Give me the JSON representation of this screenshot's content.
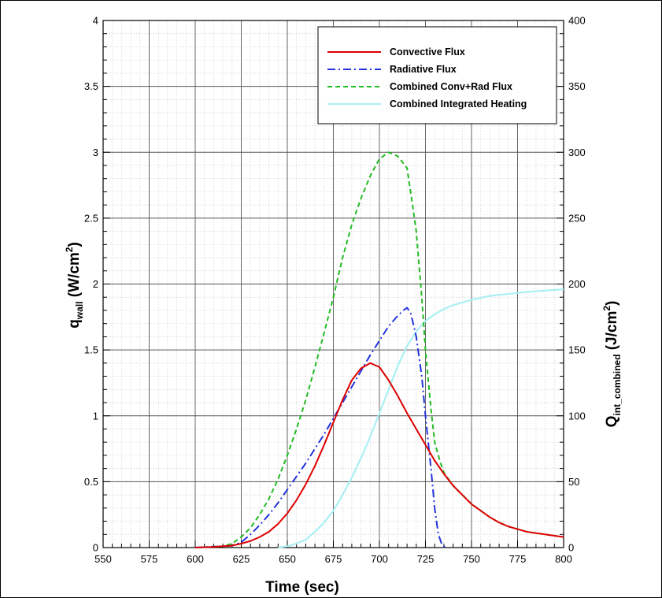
{
  "chart_data": {
    "type": "line",
    "title": "",
    "xlabel": "Time (sec)",
    "ylabel_left": {
      "main": "q",
      "sub": "wall",
      "units_pre": " (W/cm",
      "units_sup": "2",
      "units_post": ")"
    },
    "ylabel_right": {
      "main": "Q",
      "sub": "int_combined",
      "units_pre": " (J/cm",
      "units_sup": "2",
      "units_post": ")"
    },
    "xlim": [
      550,
      800
    ],
    "ylim_left": [
      0,
      4
    ],
    "ylim_right": [
      0,
      400
    ],
    "x_ticks": [
      "550",
      "575",
      "600",
      "625",
      "650",
      "675",
      "700",
      "725",
      "750",
      "775",
      "800"
    ],
    "y_left_ticks": [
      "0",
      "0.5",
      "1",
      "1.5",
      "2",
      "2.5",
      "3",
      "3.5",
      "4"
    ],
    "y_right_ticks": [
      "0",
      "50",
      "100",
      "150",
      "200",
      "250",
      "300",
      "350",
      "400"
    ],
    "grid": true,
    "legend_position": "top-right",
    "series": [
      {
        "name": "Convective Flux",
        "color": "#dd0000",
        "style": "solid",
        "axis": "left",
        "points": [
          [
            600,
            0
          ],
          [
            610,
            0.005
          ],
          [
            620,
            0.015
          ],
          [
            625,
            0.03
          ],
          [
            630,
            0.05
          ],
          [
            635,
            0.08
          ],
          [
            640,
            0.12
          ],
          [
            645,
            0.18
          ],
          [
            650,
            0.26
          ],
          [
            655,
            0.36
          ],
          [
            660,
            0.48
          ],
          [
            665,
            0.62
          ],
          [
            670,
            0.78
          ],
          [
            675,
            0.95
          ],
          [
            680,
            1.12
          ],
          [
            685,
            1.27
          ],
          [
            690,
            1.36
          ],
          [
            695,
            1.4
          ],
          [
            700,
            1.37
          ],
          [
            705,
            1.27
          ],
          [
            710,
            1.15
          ],
          [
            715,
            1.02
          ],
          [
            720,
            0.9
          ],
          [
            725,
            0.78
          ],
          [
            730,
            0.66
          ],
          [
            735,
            0.56
          ],
          [
            740,
            0.47
          ],
          [
            745,
            0.4
          ],
          [
            750,
            0.33
          ],
          [
            755,
            0.28
          ],
          [
            760,
            0.23
          ],
          [
            765,
            0.19
          ],
          [
            770,
            0.16
          ],
          [
            775,
            0.14
          ],
          [
            780,
            0.12
          ],
          [
            785,
            0.11
          ],
          [
            790,
            0.1
          ],
          [
            795,
            0.09
          ],
          [
            800,
            0.08
          ]
        ]
      },
      {
        "name": "Radiative Flux",
        "color": "#2233dd",
        "style": "dashdot",
        "axis": "left",
        "points": [
          [
            600,
            0
          ],
          [
            615,
            0.01
          ],
          [
            620,
            0.015
          ],
          [
            625,
            0.04
          ],
          [
            630,
            0.1
          ],
          [
            635,
            0.17
          ],
          [
            640,
            0.25
          ],
          [
            645,
            0.34
          ],
          [
            650,
            0.44
          ],
          [
            655,
            0.54
          ],
          [
            660,
            0.64
          ],
          [
            665,
            0.75
          ],
          [
            670,
            0.86
          ],
          [
            675,
            0.98
          ],
          [
            680,
            1.1
          ],
          [
            685,
            1.22
          ],
          [
            690,
            1.34
          ],
          [
            695,
            1.46
          ],
          [
            700,
            1.57
          ],
          [
            705,
            1.68
          ],
          [
            710,
            1.76
          ],
          [
            713,
            1.8
          ],
          [
            715,
            1.82
          ],
          [
            717,
            1.78
          ],
          [
            720,
            1.6
          ],
          [
            723,
            1.3
          ],
          [
            725,
            1.0
          ],
          [
            728,
            0.6
          ],
          [
            730,
            0.3
          ],
          [
            732,
            0.1
          ],
          [
            734,
            0.02
          ],
          [
            736,
            0
          ]
        ]
      },
      {
        "name": "Combined Conv+Rad Flux",
        "color": "#22bb22",
        "style": "dashed",
        "axis": "left",
        "points": [
          [
            600,
            0
          ],
          [
            615,
            0.01
          ],
          [
            620,
            0.03
          ],
          [
            625,
            0.08
          ],
          [
            630,
            0.15
          ],
          [
            635,
            0.25
          ],
          [
            640,
            0.37
          ],
          [
            645,
            0.52
          ],
          [
            650,
            0.7
          ],
          [
            655,
            0.9
          ],
          [
            660,
            1.12
          ],
          [
            665,
            1.37
          ],
          [
            670,
            1.63
          ],
          [
            675,
            1.9
          ],
          [
            680,
            2.2
          ],
          [
            685,
            2.45
          ],
          [
            690,
            2.65
          ],
          [
            695,
            2.82
          ],
          [
            700,
            2.95
          ],
          [
            705,
            3.0
          ],
          [
            710,
            2.97
          ],
          [
            715,
            2.88
          ],
          [
            718,
            2.6
          ],
          [
            720,
            2.4
          ],
          [
            723,
            1.9
          ],
          [
            725,
            1.5
          ],
          [
            728,
            1.05
          ],
          [
            730,
            0.8
          ],
          [
            733,
            0.65
          ],
          [
            735,
            0.57
          ],
          [
            740,
            0.47
          ],
          [
            745,
            0.4
          ],
          [
            750,
            0.33
          ],
          [
            755,
            0.28
          ],
          [
            760,
            0.23
          ],
          [
            765,
            0.19
          ],
          [
            770,
            0.16
          ],
          [
            775,
            0.14
          ],
          [
            780,
            0.12
          ],
          [
            785,
            0.11
          ],
          [
            790,
            0.1
          ],
          [
            795,
            0.09
          ],
          [
            800,
            0.08
          ]
        ]
      },
      {
        "name": "Combined Integrated Heating",
        "color": "#aaf0f2",
        "style": "solid",
        "axis": "right",
        "points": [
          [
            645,
            0
          ],
          [
            650,
            1
          ],
          [
            655,
            3
          ],
          [
            660,
            6
          ],
          [
            665,
            12
          ],
          [
            670,
            19
          ],
          [
            675,
            28
          ],
          [
            680,
            40
          ],
          [
            685,
            53
          ],
          [
            690,
            68
          ],
          [
            695,
            84
          ],
          [
            700,
            102
          ],
          [
            705,
            120
          ],
          [
            710,
            138
          ],
          [
            715,
            153
          ],
          [
            720,
            164
          ],
          [
            725,
            172
          ],
          [
            730,
            177
          ],
          [
            735,
            181
          ],
          [
            740,
            184
          ],
          [
            745,
            186
          ],
          [
            750,
            188
          ],
          [
            760,
            191
          ],
          [
            770,
            192.5
          ],
          [
            780,
            194
          ],
          [
            790,
            195
          ],
          [
            800,
            196
          ]
        ]
      }
    ]
  }
}
